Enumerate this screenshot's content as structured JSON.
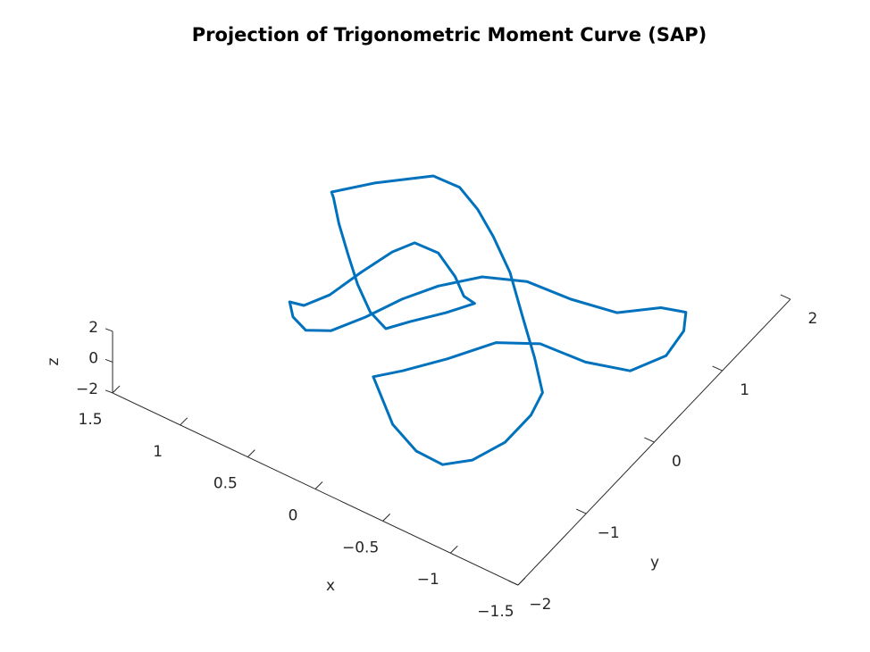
{
  "chart_data": {
    "type": "line3d",
    "title": "Projection of Trigonometric Moment Curve (SAP)",
    "xlabel": "x",
    "ylabel": "y",
    "zlabel": "z",
    "xlim": [
      -1.5,
      1.5
    ],
    "ylim": [
      -2,
      2
    ],
    "zlim": [
      -2,
      2
    ],
    "xticks": [
      {
        "value": -1.5,
        "label": "−1.5"
      },
      {
        "value": -1,
        "label": "−1"
      },
      {
        "value": -0.5,
        "label": "−0.5"
      },
      0,
      0.5,
      1,
      1.5
    ],
    "yticks": [
      {
        "value": -2,
        "label": "−2"
      },
      {
        "value": -1,
        "label": "−1"
      },
      0,
      1,
      2
    ],
    "zticks": [
      {
        "value": -2,
        "label": "−2"
      },
      0,
      2
    ],
    "series": [
      {
        "color": "#0072bd",
        "x": [
          1.21,
          1.03,
          0.77,
          0.58,
          0.38,
          0.17,
          -0.09,
          -0.37,
          -0.63,
          -0.84,
          -0.89,
          -0.89,
          -0.81,
          -0.68,
          -0.48,
          -0.23,
          0.1,
          -0.02,
          -0.19,
          -0.36,
          -0.59,
          -0.91,
          -1.18,
          -1.29,
          -1.26,
          -1.18,
          -1.03,
          -0.83,
          -0.53,
          -0.22,
          0.03,
          0.21,
          0.33,
          0.43,
          0.54,
          0.67,
          0.8,
          0.89,
          0.8,
          0.72,
          0.67,
          0.61,
          0.54,
          0.37,
          0.17,
          0.03,
          -0.06,
          0.04,
          0.18,
          0.27,
          0.43,
          0.63,
          0.82,
          1.02,
          1.17
        ],
        "y": [
          0.64,
          0.93,
          1.26,
          1.27,
          1.14,
          0.95,
          0.68,
          0.31,
          -0.03,
          -0.33,
          -0.6,
          -0.98,
          -1.3,
          -1.48,
          -1.47,
          -1.32,
          -0.95,
          -0.76,
          -0.44,
          -0.06,
          0.13,
          0.16,
          0.28,
          0.59,
          0.91,
          1.1,
          1.03,
          0.78,
          0.7,
          0.67,
          0.51,
          0.22,
          -0.07,
          -0.41,
          -0.7,
          -0.81,
          -0.74,
          -0.61,
          -0.58,
          -0.36,
          0.0,
          0.34,
          0.53,
          0.54,
          0.39,
          0.24,
          0.22,
          0.0,
          -0.25,
          -0.43,
          -0.34,
          -0.13,
          0.11,
          0.37,
          0.59
        ],
        "z": [
          0,
          0,
          0,
          0,
          0,
          0,
          0,
          0,
          0,
          0,
          0,
          0,
          0,
          0,
          0,
          0,
          0,
          0,
          0,
          0,
          0,
          0,
          0,
          0,
          0,
          0,
          0,
          0,
          0,
          0,
          0,
          0,
          0,
          0,
          0,
          0,
          0,
          0,
          0,
          0,
          0,
          0,
          0,
          0,
          0,
          0,
          0,
          0,
          0,
          0,
          0,
          0,
          0,
          0,
          0
        ]
      }
    ]
  }
}
